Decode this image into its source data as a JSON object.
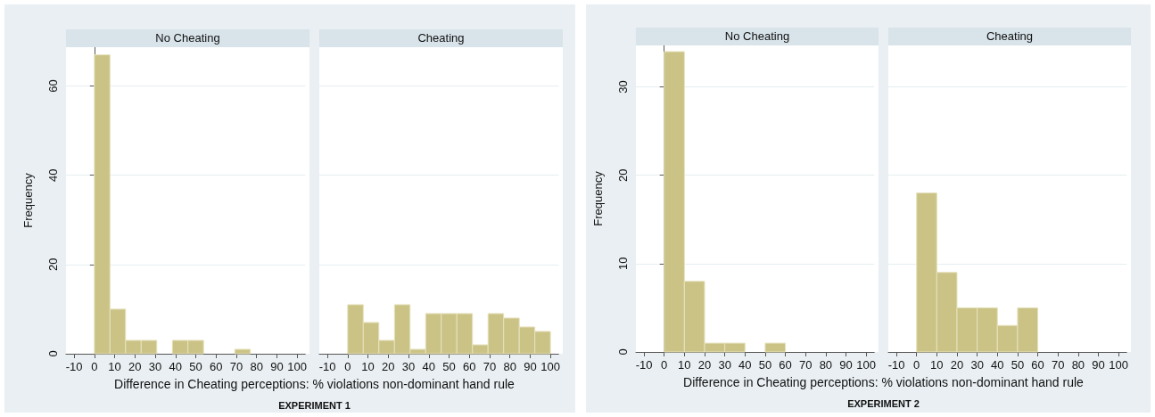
{
  "chart_data": [
    {
      "type": "histogram",
      "title": "No Cheating",
      "xlabel": "Difference in Cheating perceptions: % violations non-dominant hand rule",
      "ylabel": "Frequency",
      "annotations": [
        "EXPERIMENT 1"
      ],
      "bins": [
        0,
        7.69,
        15.38,
        23.08,
        30.77,
        38.46,
        46.15,
        53.85,
        61.54,
        69.23,
        76.92,
        84.62,
        92.31,
        100
      ],
      "values": [
        67,
        10,
        3,
        3,
        0,
        3,
        3,
        0,
        0,
        1,
        0,
        0,
        0
      ],
      "color": "#cbc386",
      "xlim": [
        -14,
        104
      ],
      "xticks": [
        -10,
        0,
        10,
        20,
        30,
        40,
        50,
        60,
        70,
        80,
        90,
        100
      ],
      "ylim": [
        0,
        68.7
      ],
      "yticks": [
        0,
        20,
        40,
        60
      ],
      "grid": "y"
    },
    {
      "type": "histogram",
      "title": "Cheating",
      "bins": [
        0,
        7.69,
        15.38,
        23.08,
        30.77,
        38.46,
        46.15,
        53.85,
        61.54,
        69.23,
        76.92,
        84.62,
        92.31,
        100
      ],
      "values": [
        11,
        7,
        3,
        11,
        1,
        9,
        9,
        9,
        2,
        9,
        8,
        6,
        5
      ],
      "color": "#cbc386",
      "xlim": [
        -14,
        104
      ],
      "xticks": [
        -10,
        0,
        10,
        20,
        30,
        40,
        50,
        60,
        70,
        80,
        90,
        100
      ],
      "ylim": [
        0,
        68.7
      ],
      "yticks": [
        0,
        20,
        40,
        60
      ],
      "grid": "y",
      "tick_labels": "x"
    },
    {
      "type": "histogram",
      "title": "No Cheating",
      "xlabel": "Difference in Cheating perceptions: % violations non-dominant hand rule",
      "ylabel": "Frequency",
      "annotations": [
        "EXPERIMENT 2"
      ],
      "bins": [
        0,
        10,
        20,
        30,
        40,
        50,
        60
      ],
      "values": [
        34,
        8,
        1,
        1,
        0,
        1
      ],
      "color": "#cbc386",
      "xlim": [
        -14,
        104
      ],
      "xticks": [
        -10,
        0,
        10,
        20,
        30,
        40,
        50,
        60,
        70,
        80,
        90,
        100
      ],
      "ylim": [
        0,
        34.7
      ],
      "yticks": [
        0,
        10,
        20,
        30
      ],
      "grid": "y"
    },
    {
      "type": "histogram",
      "title": "Cheating",
      "bins": [
        0,
        10,
        20,
        30,
        40,
        50,
        60
      ],
      "values": [
        18,
        9,
        5,
        5,
        3,
        5
      ],
      "color": "#cbc386",
      "xlim": [
        -14,
        104
      ],
      "xticks": [
        -10,
        0,
        10,
        20,
        30,
        40,
        50,
        60,
        70,
        80,
        90,
        100
      ],
      "ylim": [
        0,
        34.7
      ],
      "yticks": [
        0,
        10,
        20,
        30
      ],
      "grid": "y",
      "tick_labels": "x"
    }
  ]
}
